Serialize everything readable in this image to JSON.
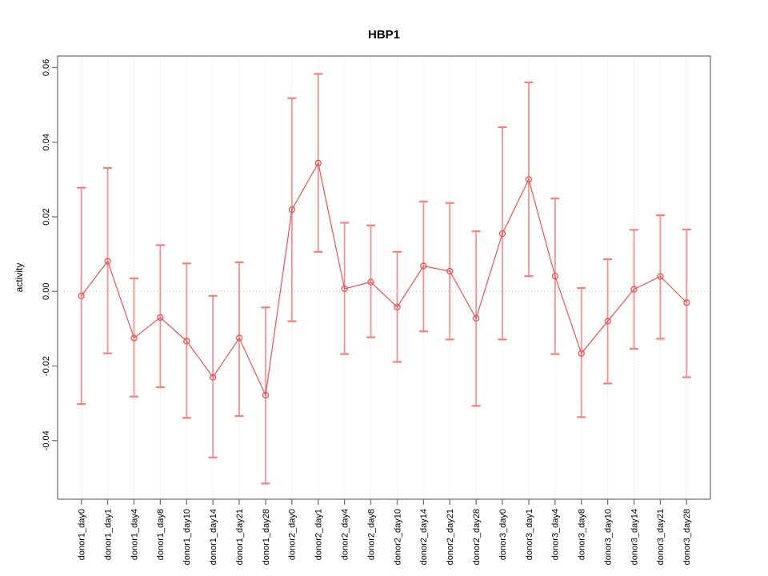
{
  "figure": {
    "title": "HBP1"
  },
  "chart_data": {
    "type": "line",
    "title": "HBP1",
    "xlabel": "",
    "ylabel": "activity",
    "legend": "none",
    "grid": "vertical-dotted",
    "zero_line": true,
    "categories": [
      "donor1_day0",
      "donor1_day1",
      "donor1_day4",
      "donor1_day8",
      "donor1_day10",
      "donor1_day14",
      "donor1_day21",
      "donor1_day28",
      "donor2_day0",
      "donor2_day1",
      "donor2_day4",
      "donor2_day8",
      "donor2_day10",
      "donor2_day14",
      "donor2_day21",
      "donor2_day28",
      "donor3_day0",
      "donor3_day1",
      "donor3_day4",
      "donor3_day8",
      "donor3_day10",
      "donor3_day14",
      "donor3_day21",
      "donor3_day28"
    ],
    "series": [
      {
        "name": "activity",
        "values": [
          -0.0012,
          0.0081,
          -0.0125,
          -0.007,
          -0.0133,
          -0.023,
          -0.0125,
          -0.0278,
          0.0219,
          0.0344,
          0.0007,
          0.0025,
          -0.0042,
          0.0068,
          0.0054,
          -0.0072,
          0.0155,
          0.03,
          0.0041,
          -0.0166,
          -0.008,
          0.0006,
          0.004,
          -0.003
        ],
        "error_upper": [
          0.0278,
          0.0331,
          0.0035,
          0.0124,
          0.0075,
          -0.0012,
          0.0078,
          -0.0043,
          0.0518,
          0.0583,
          0.0184,
          0.0177,
          0.0106,
          0.0241,
          0.0237,
          0.0161,
          0.044,
          0.056,
          0.0249,
          0.0009,
          0.0086,
          0.0165,
          0.0204,
          0.0166
        ],
        "error_lower": [
          -0.0302,
          -0.0166,
          -0.0282,
          -0.0257,
          -0.0339,
          -0.0445,
          -0.0334,
          -0.0515,
          -0.008,
          0.0106,
          -0.0168,
          -0.0123,
          -0.0189,
          -0.0107,
          -0.0129,
          -0.0307,
          -0.0129,
          0.0041,
          -0.0168,
          -0.0337,
          -0.0247,
          -0.0154,
          -0.0127,
          -0.023
        ]
      }
    ],
    "yticks": {
      "values": [
        -0.04,
        -0.02,
        0.0,
        0.02,
        0.04,
        0.06
      ],
      "labels": [
        "-0.04",
        "-0.02",
        "0.00",
        "0.02",
        "0.04",
        "0.06"
      ]
    },
    "ylim": [
      -0.0557,
      0.0631
    ],
    "colors": {
      "errorbar": "#f99090",
      "errorbar_cap": "#f77f7f",
      "line": "#ee5252",
      "point": "#ee5252",
      "grid": "#d7d7d7",
      "zero_line": "#e2bcbc",
      "axis": "#777777",
      "text": "#000000"
    }
  }
}
